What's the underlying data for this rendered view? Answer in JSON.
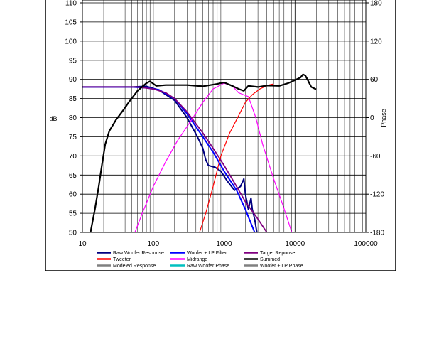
{
  "chart_data": {
    "type": "line",
    "x_scale": "log",
    "xlim": [
      10,
      100000
    ],
    "ylim_left": [
      50,
      110
    ],
    "ylim_right": [
      -180,
      180
    ],
    "ylabel_left": "dB",
    "ylabel_right": "Phase",
    "x_ticks": [
      {
        "value": 10,
        "label": "10"
      },
      {
        "value": 100,
        "label": "100"
      },
      {
        "value": 1000,
        "label": "1000"
      },
      {
        "value": 10000,
        "label": "10000"
      },
      {
        "value": 100000,
        "label": "100000"
      }
    ],
    "y_ticks_left": [
      "50",
      "55",
      "60",
      "65",
      "70",
      "75",
      "80",
      "85",
      "90",
      "95",
      "100",
      "105",
      "110"
    ],
    "y_ticks_right": [
      {
        "value": -180,
        "label": "-180"
      },
      {
        "value": -120,
        "label": "-120"
      },
      {
        "value": -60,
        "label": "-60"
      },
      {
        "value": 0,
        "label": "0"
      },
      {
        "value": 60,
        "label": "60"
      },
      {
        "value": 120,
        "label": "120"
      },
      {
        "value": 180,
        "label": "180"
      }
    ],
    "grid": true,
    "legend_position": "bottom",
    "series": [
      {
        "name": "Raw Woofer Response",
        "color": "#000080",
        "points": [
          [
            10,
            88
          ],
          [
            50,
            88
          ],
          [
            80,
            88.2
          ],
          [
            120,
            87.2
          ],
          [
            200,
            84.5
          ],
          [
            300,
            80
          ],
          [
            420,
            75
          ],
          [
            500,
            72
          ],
          [
            550,
            69
          ],
          [
            600,
            67.5
          ],
          [
            750,
            67
          ],
          [
            900,
            66
          ],
          [
            1100,
            63.5
          ],
          [
            1400,
            61
          ],
          [
            1700,
            62
          ],
          [
            1900,
            64
          ],
          [
            2000,
            60
          ],
          [
            2200,
            56
          ],
          [
            2400,
            59
          ],
          [
            2500,
            56
          ],
          [
            2700,
            53.5
          ],
          [
            2900,
            50
          ]
        ]
      },
      {
        "name": "Woofer + LP Filter",
        "color": "#0000ff",
        "points": [
          [
            10,
            88
          ],
          [
            50,
            88
          ],
          [
            80,
            87.8
          ],
          [
            120,
            87.3
          ],
          [
            200,
            85
          ],
          [
            300,
            81
          ],
          [
            500,
            75
          ],
          [
            700,
            71
          ],
          [
            1000,
            66
          ],
          [
            1500,
            61
          ],
          [
            2000,
            56
          ],
          [
            2700,
            50
          ]
        ]
      },
      {
        "name": "Target Reponse",
        "color": "#800080",
        "points": [
          [
            10,
            88
          ],
          [
            60,
            88
          ],
          [
            100,
            87.5
          ],
          [
            150,
            86.5
          ],
          [
            200,
            85
          ],
          [
            300,
            81.5
          ],
          [
            500,
            76
          ],
          [
            700,
            72
          ],
          [
            1000,
            67.5
          ],
          [
            1500,
            62
          ],
          [
            2000,
            58
          ],
          [
            3000,
            53.5
          ],
          [
            4000,
            50
          ]
        ]
      },
      {
        "name": "Tweeter",
        "color": "#ff0000",
        "points": [
          [
            450,
            50
          ],
          [
            550,
            55
          ],
          [
            700,
            62
          ],
          [
            900,
            70
          ],
          [
            1200,
            76
          ],
          [
            1600,
            80.5
          ],
          [
            2000,
            84
          ],
          [
            2500,
            86
          ],
          [
            3200,
            87.5
          ],
          [
            4200,
            88.5
          ],
          [
            5000,
            88.8
          ]
        ]
      },
      {
        "name": "Midrange",
        "color": "#ff00ff",
        "points": [
          [
            55,
            50
          ],
          [
            70,
            55
          ],
          [
            100,
            62
          ],
          [
            150,
            68.5
          ],
          [
            220,
            74
          ],
          [
            350,
            79.5
          ],
          [
            500,
            84
          ],
          [
            700,
            87.5
          ],
          [
            1000,
            89
          ],
          [
            1300,
            88.3
          ],
          [
            1600,
            86.5
          ],
          [
            2200,
            85.5
          ],
          [
            2800,
            80
          ],
          [
            3500,
            73
          ],
          [
            5000,
            64
          ],
          [
            6500,
            58
          ],
          [
            8000,
            53
          ],
          [
            9000,
            50
          ]
        ]
      },
      {
        "name": "Summed",
        "color": "#000000",
        "points": [
          [
            13,
            50
          ],
          [
            15,
            56
          ],
          [
            17,
            62
          ],
          [
            19,
            68
          ],
          [
            21,
            73
          ],
          [
            24,
            76.5
          ],
          [
            30,
            79.5
          ],
          [
            38,
            82
          ],
          [
            45,
            84
          ],
          [
            60,
            87
          ],
          [
            80,
            89
          ],
          [
            90,
            89.5
          ],
          [
            110,
            88.3
          ],
          [
            150,
            88.5
          ],
          [
            300,
            88.5
          ],
          [
            500,
            88.2
          ],
          [
            800,
            88.8
          ],
          [
            1000,
            89.2
          ],
          [
            1300,
            88.3
          ],
          [
            1600,
            87.5
          ],
          [
            1900,
            87
          ],
          [
            2200,
            88.3
          ],
          [
            3000,
            88
          ],
          [
            4000,
            88.4
          ],
          [
            6000,
            88.3
          ],
          [
            8000,
            89
          ],
          [
            10000,
            89.8
          ],
          [
            12000,
            90.5
          ],
          [
            13000,
            91.3
          ],
          [
            14000,
            91
          ],
          [
            15000,
            90
          ],
          [
            17000,
            88
          ],
          [
            20000,
            87.4
          ]
        ]
      },
      {
        "name": "Modeled Response",
        "color": "#808080",
        "points": []
      },
      {
        "name": "Raw Woofer Phase",
        "color": "#00c0c0",
        "points": []
      },
      {
        "name": "Woofer + LP Phase",
        "color": "#808080",
        "points": []
      }
    ]
  }
}
